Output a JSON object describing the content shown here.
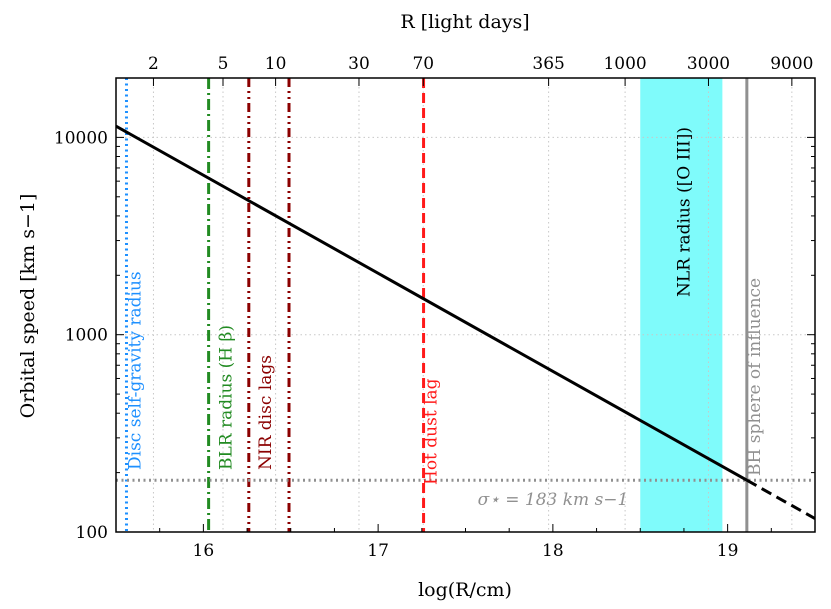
{
  "chart_data": {
    "type": "line",
    "xlabel": "log(R/cm)",
    "ylabel": "Orbital speed [km s−1]",
    "top_xlabel": "R [light days]",
    "xlim": [
      15.5,
      19.5
    ],
    "ylim": [
      100,
      20000
    ],
    "yscale": "log",
    "x_ticks": [
      16,
      17,
      18,
      19
    ],
    "x_tick_labels": [
      "16",
      "17",
      "18",
      "19"
    ],
    "y_ticks": [
      100,
      1000,
      10000
    ],
    "y_tick_labels": [
      "100",
      "1000",
      "10000"
    ],
    "top_ticks_days": [
      2,
      5,
      10,
      30,
      70,
      365,
      1000,
      3000,
      9000
    ],
    "top_tick_labels": [
      "2",
      "5",
      "10",
      "30",
      "70",
      "365",
      "1000",
      "3000",
      "9000"
    ],
    "grid": true,
    "series": [
      {
        "name": "orbital speed",
        "style": "solid",
        "color": "#000000",
        "x": [
          15.5,
          19.11
        ],
        "y": [
          11400,
          183
        ]
      },
      {
        "name": "orbital speed (beyond sphere of influence)",
        "style": "dashed",
        "color": "#000000",
        "x": [
          19.11,
          19.5
        ],
        "y": [
          183,
          117
        ]
      }
    ],
    "vlines": [
      {
        "x": 15.56,
        "color": "#1e90ff",
        "style": "dotted",
        "label": "Disc self-gravity radius"
      },
      {
        "x": 16.03,
        "color": "#228b22",
        "style": "dashdot",
        "label": "BLR radius (H β)"
      },
      {
        "x": 16.26,
        "color": "#8b0000",
        "style": "dashdotdot",
        "label": "NIR disc lags"
      },
      {
        "x": 16.49,
        "color": "#8b0000",
        "style": "dashdotdot",
        "label": ""
      },
      {
        "x": 17.26,
        "color": "#ff1a1a",
        "style": "dashed",
        "label": "Hot dust lag"
      },
      {
        "x": 19.11,
        "color": "#909090",
        "style": "solid",
        "label": "BH sphere of influence"
      }
    ],
    "hlines": [
      {
        "y": 183,
        "color": "#909090",
        "style": "dotted",
        "label": "σ⋆ = 183 km s−1"
      }
    ],
    "bands": [
      {
        "x0": 18.5,
        "x1": 18.97,
        "color": "#7ffbfb",
        "label": "NLR radius ([O III])"
      }
    ]
  }
}
